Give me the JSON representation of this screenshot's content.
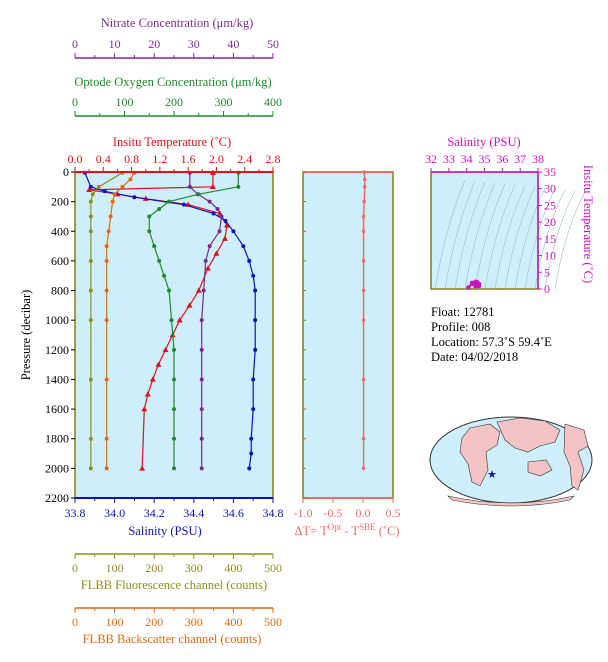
{
  "colors": {
    "nitrate": "#7b2a8c",
    "oxygen": "#1f8a2c",
    "temperature": "#e0101a",
    "salinity": "#1010c0",
    "fluorescence": "#8f8f1f",
    "backscatter": "#e06a10",
    "delta_t": "#f06a6a",
    "ts_axis": "#d010c0",
    "plot_bg": "#cdeefa",
    "frame": "#8a7a10"
  },
  "chart_data": [
    {
      "type": "line",
      "panel": "profiles",
      "ylabel": "Pressure (decibar)",
      "yticks": [
        "0",
        "200",
        "400",
        "600",
        "800",
        "1000",
        "1200",
        "1400",
        "1600",
        "1800",
        "2000",
        "2200"
      ],
      "ylim": [
        0,
        2200
      ],
      "y_reversed": true,
      "axes": {
        "nitrate": {
          "label": "Nitrate Concentration (μm/kg)",
          "ticks": [
            "0",
            "10",
            "20",
            "30",
            "40",
            "50"
          ],
          "range": [
            0,
            50
          ]
        },
        "oxygen": {
          "label": "Optode Oxygen Concentration (μm/kg)",
          "ticks": [
            "0",
            "100",
            "200",
            "300",
            "400"
          ],
          "range": [
            0,
            400
          ]
        },
        "temperature": {
          "label": "Insitu Temperature (˚C)",
          "ticks": [
            "0.0",
            "0.4",
            "0.8",
            "1.2",
            "1.6",
            "2.0",
            "2.4",
            "2.8"
          ],
          "range": [
            0,
            2.8
          ]
        },
        "salinity": {
          "label": "Salinity (PSU)",
          "ticks": [
            "33.8",
            "34.0",
            "34.2",
            "34.4",
            "34.6",
            "34.8"
          ],
          "range": [
            33.8,
            34.8
          ]
        },
        "fluorescence": {
          "label": "FLBB Fluorescence channel (counts)",
          "ticks": [
            "0",
            "100",
            "200",
            "300",
            "400",
            "500"
          ],
          "range": [
            0,
            500
          ]
        },
        "backscatter": {
          "label": "FLBB Backscatter channel (counts)",
          "ticks": [
            "0",
            "100",
            "200",
            "300",
            "400",
            "500"
          ],
          "range": [
            0,
            500
          ]
        }
      },
      "series": [
        {
          "axis": "temperature",
          "marker": "triangle",
          "x": [
            1.95,
            1.95,
            0.2,
            0.6,
            1.0,
            1.6,
            2.05,
            2.15,
            2.12,
            2.0,
            1.88,
            1.75,
            1.62,
            1.48,
            1.38,
            1.28,
            1.18,
            1.1,
            1.03,
            0.98,
            0.95
          ],
          "y": [
            5,
            100,
            120,
            150,
            180,
            220,
            280,
            360,
            450,
            550,
            650,
            800,
            900,
            1000,
            1100,
            1200,
            1300,
            1400,
            1500,
            1600,
            2000
          ]
        },
        {
          "axis": "salinity",
          "marker": "circle",
          "x": [
            33.85,
            33.88,
            33.95,
            34.1,
            34.35,
            34.5,
            34.56,
            34.6,
            34.65,
            34.68,
            34.7,
            34.71,
            34.71,
            34.71,
            34.7,
            34.7,
            34.69,
            34.69,
            34.68
          ],
          "y": [
            5,
            100,
            130,
            170,
            220,
            280,
            330,
            400,
            500,
            600,
            700,
            800,
            1000,
            1200,
            1400,
            1600,
            1800,
            1900,
            2000
          ]
        },
        {
          "axis": "nitrate",
          "marker": "circle",
          "x": [
            29,
            29,
            31,
            34,
            36,
            37,
            36.5,
            34,
            33,
            32.5,
            32,
            32,
            32,
            32,
            32,
            32
          ],
          "y": [
            5,
            100,
            150,
            200,
            250,
            300,
            400,
            500,
            600,
            800,
            1000,
            1200,
            1400,
            1600,
            1800,
            2000
          ]
        },
        {
          "axis": "oxygen",
          "marker": "circle",
          "x": [
            330,
            330,
            250,
            190,
            170,
            150,
            150,
            160,
            170,
            180,
            190,
            195,
            200,
            200,
            200,
            200,
            200
          ],
          "y": [
            5,
            100,
            150,
            200,
            250,
            300,
            400,
            500,
            600,
            700,
            800,
            1000,
            1200,
            1400,
            1600,
            1800,
            2000
          ]
        },
        {
          "axis": "fluorescence",
          "marker": "circle",
          "x": [
            120,
            60,
            45,
            40,
            40,
            40,
            40,
            40,
            40,
            40,
            40,
            40
          ],
          "y": [
            5,
            100,
            150,
            200,
            300,
            400,
            600,
            800,
            1000,
            1400,
            1800,
            2000
          ]
        },
        {
          "axis": "backscatter",
          "marker": "circle",
          "x": [
            150,
            140,
            120,
            100,
            95,
            90,
            85,
            80,
            80,
            80,
            80,
            80,
            80,
            80
          ],
          "y": [
            5,
            50,
            100,
            150,
            200,
            300,
            400,
            500,
            600,
            800,
            1000,
            1400,
            1800,
            2000
          ]
        }
      ]
    },
    {
      "type": "line",
      "panel": "delta_t",
      "xlabel": "ΔT= T",
      "xlabel_sup1": "Opt",
      "xlabel_mid": " - T",
      "xlabel_sup2": "SBE",
      "xlabel_end": " (˚C)",
      "xticks": [
        "-1.0",
        "-0.5",
        "0.0",
        "0.5"
      ],
      "xlim": [
        -1.0,
        0.5
      ],
      "series": [
        {
          "x": [
            0.02,
            0.03,
            0.03,
            0.02,
            0.01,
            0.01,
            0.01,
            0.01,
            0.01,
            0.01,
            0.01,
            0.01
          ],
          "y": [
            0,
            50,
            100,
            200,
            300,
            400,
            600,
            800,
            1000,
            1400,
            1800,
            2000
          ]
        }
      ]
    },
    {
      "type": "scatter",
      "panel": "ts_diagram",
      "xlabel": "Salinity (PSU)",
      "xticks": [
        "32",
        "33",
        "34",
        "35",
        "36",
        "37",
        "38"
      ],
      "xlim": [
        32,
        38
      ],
      "ylabel": "Insitu Temperature (˚C)",
      "yticks": [
        "0",
        "5",
        "10",
        "15",
        "20",
        "25",
        "30",
        "35"
      ],
      "ylim": [
        0,
        35
      ],
      "series": [
        {
          "x": [
            34.1,
            34.3,
            34.5,
            34.6,
            34.7,
            34.6,
            34.5,
            34.3,
            34.7
          ],
          "y": [
            0.5,
            1.5,
            2.2,
            2.0,
            1.5,
            1.0,
            0.8,
            1.8,
            0.9
          ]
        }
      ]
    }
  ],
  "info": {
    "float": "Float:  12781",
    "profile": "Profile:  008",
    "location": "Location:  57.3˚S  59.4˚E",
    "date": "Date:  04/02/2018"
  },
  "map": {
    "float_marker": "location-star"
  }
}
